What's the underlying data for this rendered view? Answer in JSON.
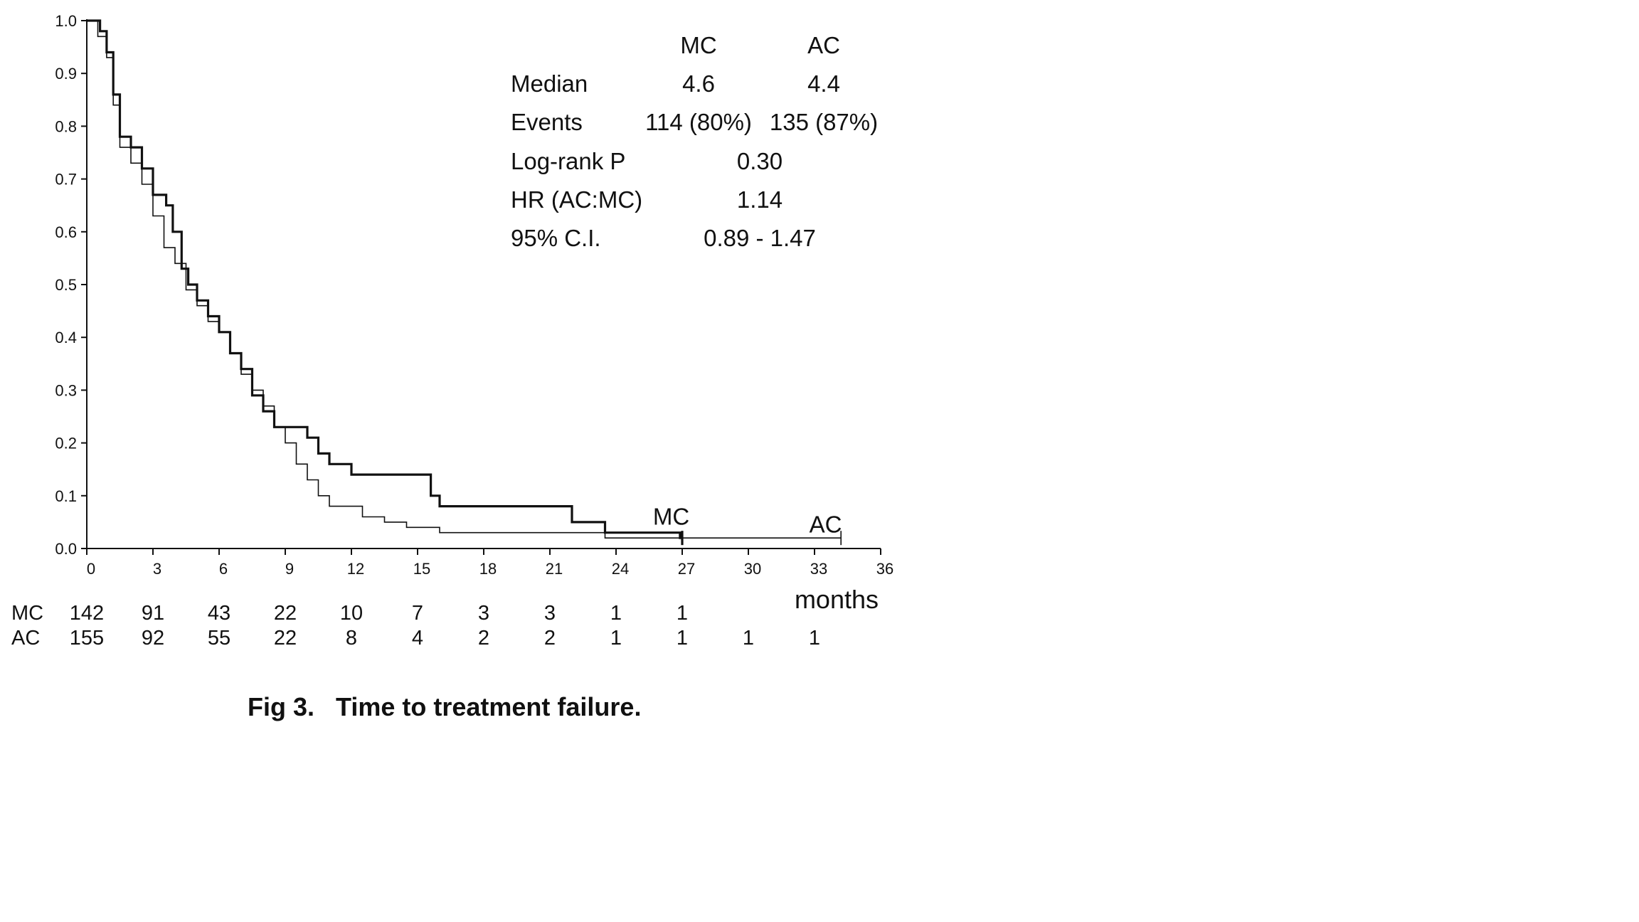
{
  "chart_data": {
    "type": "line",
    "subtype": "kaplan-meier",
    "xlabel": "months",
    "ylabel": "",
    "xlim": [
      0,
      36
    ],
    "ylim": [
      0,
      1.0
    ],
    "x_ticks": [
      "0",
      "3",
      "6",
      "9",
      "12",
      "15",
      "18",
      "21",
      "24",
      "27",
      "30",
      "33",
      "36"
    ],
    "y_ticks": [
      "0.0",
      "0.1",
      "0.2",
      "0.3",
      "0.4",
      "0.5",
      "0.6",
      "0.7",
      "0.8",
      "0.9",
      "1.0"
    ],
    "grid": false,
    "series": [
      {
        "name": "MC",
        "line_weight": "thick",
        "points": [
          [
            0,
            1.0
          ],
          [
            0.6,
            0.98
          ],
          [
            0.9,
            0.94
          ],
          [
            1.2,
            0.86
          ],
          [
            1.5,
            0.78
          ],
          [
            2.0,
            0.76
          ],
          [
            2.5,
            0.72
          ],
          [
            3.0,
            0.67
          ],
          [
            3.6,
            0.65
          ],
          [
            3.9,
            0.6
          ],
          [
            4.3,
            0.53
          ],
          [
            4.6,
            0.5
          ],
          [
            5.0,
            0.47
          ],
          [
            5.5,
            0.44
          ],
          [
            6.0,
            0.41
          ],
          [
            6.5,
            0.37
          ],
          [
            7.0,
            0.34
          ],
          [
            7.5,
            0.29
          ],
          [
            8.0,
            0.26
          ],
          [
            8.5,
            0.23
          ],
          [
            9.5,
            0.23
          ],
          [
            10.0,
            0.21
          ],
          [
            10.5,
            0.18
          ],
          [
            11.0,
            0.16
          ],
          [
            12.0,
            0.14
          ],
          [
            15.3,
            0.14
          ],
          [
            15.6,
            0.1
          ],
          [
            16.0,
            0.08
          ],
          [
            21.8,
            0.08
          ],
          [
            22.0,
            0.05
          ],
          [
            23.5,
            0.03
          ],
          [
            24.0,
            0.03
          ],
          [
            26.9,
            0.02
          ],
          [
            27.0,
            0.02
          ]
        ]
      },
      {
        "name": "AC",
        "line_weight": "thin",
        "points": [
          [
            0,
            1.0
          ],
          [
            0.5,
            0.97
          ],
          [
            0.9,
            0.93
          ],
          [
            1.2,
            0.84
          ],
          [
            1.5,
            0.76
          ],
          [
            2.0,
            0.73
          ],
          [
            2.5,
            0.69
          ],
          [
            3.0,
            0.63
          ],
          [
            3.5,
            0.57
          ],
          [
            4.0,
            0.54
          ],
          [
            4.5,
            0.49
          ],
          [
            5.0,
            0.46
          ],
          [
            5.5,
            0.43
          ],
          [
            6.0,
            0.41
          ],
          [
            6.5,
            0.37
          ],
          [
            7.0,
            0.33
          ],
          [
            7.5,
            0.3
          ],
          [
            8.0,
            0.27
          ],
          [
            8.5,
            0.23
          ],
          [
            9.0,
            0.2
          ],
          [
            9.5,
            0.16
          ],
          [
            10.0,
            0.13
          ],
          [
            10.5,
            0.1
          ],
          [
            11.0,
            0.08
          ],
          [
            12.5,
            0.06
          ],
          [
            13.5,
            0.05
          ],
          [
            14.5,
            0.04
          ],
          [
            16.0,
            0.03
          ],
          [
            23.5,
            0.02
          ],
          [
            34.2,
            0.02
          ]
        ]
      }
    ],
    "series_labels": [
      {
        "text": "MC",
        "x": 26.5,
        "y": 0.04
      },
      {
        "text": "AC",
        "x": 33.5,
        "y": 0.025
      }
    ],
    "stats_table": {
      "col_headers": [
        "MC",
        "AC"
      ],
      "median_label": "Median",
      "median_mc": "4.6",
      "median_ac": "4.4",
      "events_label": "Events",
      "events_mc": "114 (80%)",
      "events_ac": "135 (87%)",
      "logrank_label": "Log-rank P",
      "logrank_value": "0.30",
      "hr_label": "HR (AC:MC)",
      "hr_value": "1.14",
      "ci_label": "95% C.I.",
      "ci_value": "0.89 - 1.47"
    },
    "at_risk": {
      "x": [
        0,
        3,
        6,
        9,
        12,
        15,
        18,
        21,
        24,
        27,
        30,
        33
      ],
      "rows": [
        {
          "label": "MC",
          "counts": [
            "142",
            "91",
            "43",
            "22",
            "10",
            "7",
            "3",
            "3",
            "1",
            "1",
            "",
            ""
          ]
        },
        {
          "label": "AC",
          "counts": [
            "155",
            "92",
            "55",
            "22",
            "8",
            "4",
            "2",
            "2",
            "1",
            "1",
            "1",
            "1"
          ]
        }
      ]
    },
    "caption": "Fig 3.   Time to treatment failure."
  }
}
